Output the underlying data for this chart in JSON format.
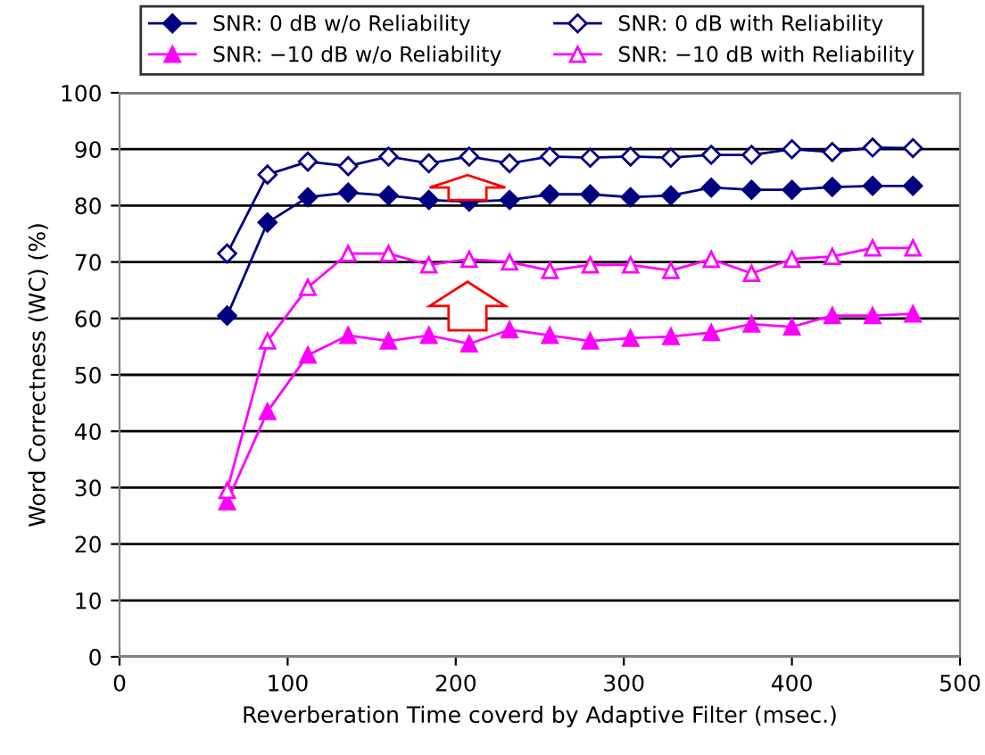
{
  "chart_data": {
    "type": "line",
    "xlabel": "Reverberation Time coverd by Adaptive Filter (msec.)",
    "ylabel": "Word Correctness (WC) (%)",
    "x": [
      64,
      88,
      112,
      136,
      160,
      184,
      208,
      232,
      256,
      280,
      304,
      328,
      352,
      376,
      400,
      424,
      448,
      472
    ],
    "series": [
      {
        "name": "SNR: 0 dB w/o Reliability",
        "color": "#000080",
        "marker": "diamond",
        "values": [
          60.5,
          77,
          81.5,
          82.3,
          81.8,
          81,
          80.7,
          81,
          82,
          82,
          81.5,
          81.8,
          83.2,
          82.8,
          82.8,
          83.3,
          83.5,
          83.5
        ]
      },
      {
        "name": "SNR: 0 dB with Reliability",
        "color": "#000080",
        "marker": "diamond",
        "values": [
          71.5,
          85.5,
          87.8,
          87,
          88.7,
          87.5,
          88.7,
          87.5,
          88.7,
          88.5,
          88.7,
          88.5,
          89,
          89,
          90,
          89.5,
          90.3,
          90.2
        ]
      },
      {
        "name": "SNR: −10 dB w/o Reliability",
        "color": "#ff00ff",
        "marker": "triangle",
        "values": [
          27.5,
          43.5,
          53.5,
          57,
          56,
          57,
          55.5,
          58,
          57,
          56,
          56.5,
          56.8,
          57.5,
          59,
          58.5,
          60.5,
          60.5,
          60.8
        ]
      },
      {
        "name": "SNR: −10 dB with Reliability",
        "color": "#ff00ff",
        "marker": "triangle",
        "values": [
          29.5,
          56,
          65.5,
          71.5,
          71.5,
          69.5,
          70.5,
          70,
          68.5,
          69.5,
          69.5,
          68.5,
          70.5,
          68,
          70.5,
          71,
          72.5,
          72.5
        ]
      }
    ],
    "xlim": [
      0,
      500
    ],
    "xticks": [
      0,
      100,
      200,
      300,
      400,
      500
    ],
    "ylim": [
      0,
      100
    ],
    "yticks": [
      0,
      10,
      20,
      30,
      40,
      50,
      60,
      70,
      80,
      90,
      100
    ],
    "grid": "y",
    "legend": "top"
  }
}
